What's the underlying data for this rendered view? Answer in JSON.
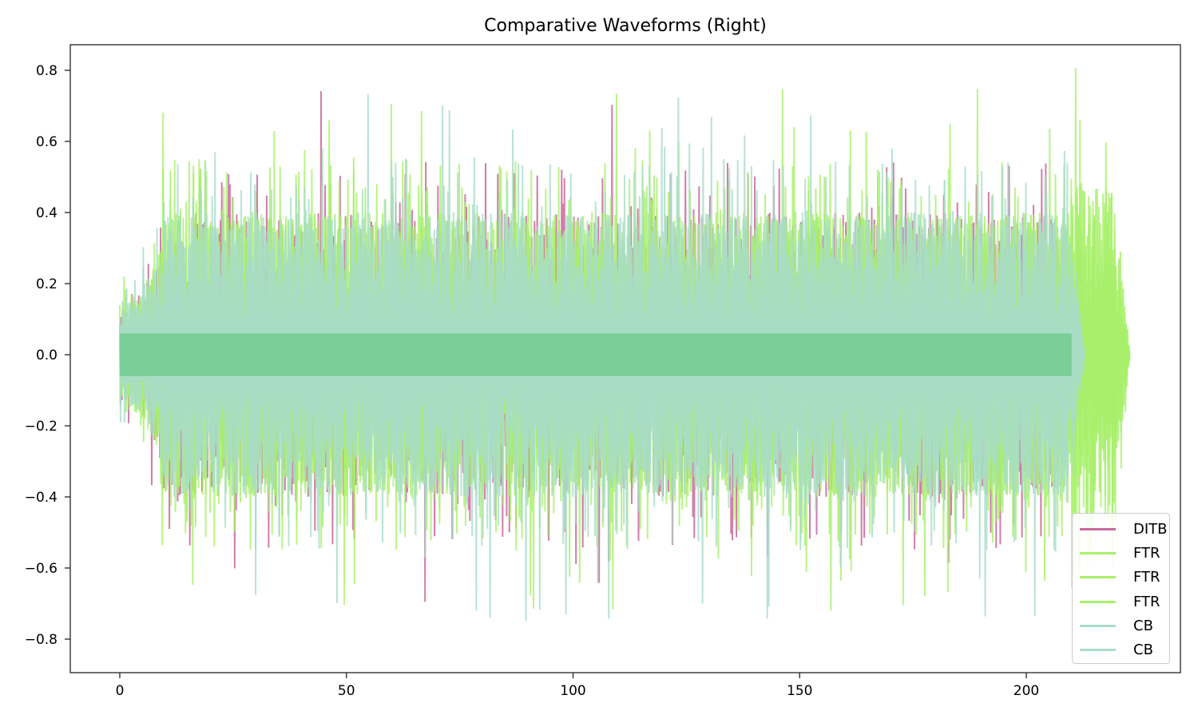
{
  "chart_data": {
    "type": "line",
    "title": "Comparative Waveforms (Right)",
    "xlabel": "",
    "ylabel": "",
    "xlim": [
      -11,
      234
    ],
    "ylim": [
      -0.9,
      0.87
    ],
    "xticks": [
      0,
      50,
      100,
      150,
      200
    ],
    "yticks": [
      0.8,
      0.6,
      0.4,
      0.2,
      0.0,
      -0.2,
      -0.4,
      -0.6,
      -0.8
    ],
    "ytick_labels": [
      "0.8",
      "0.6",
      "0.4",
      "0.2",
      "0.0",
      "−0.2",
      "−0.4",
      "−0.6",
      "−0.8"
    ],
    "grid": false,
    "legend_position": "lower right",
    "series": [
      {
        "name": "DITB",
        "color": "#c9689b",
        "duration": 210,
        "envelope_peak": 0.73,
        "envelope_trough": -0.82
      },
      {
        "name": "FTR",
        "color": "#a8f06a",
        "duration": 223,
        "envelope_peak": 0.79,
        "envelope_trough": -0.71
      },
      {
        "name": "FTR",
        "color": "#a8f06a",
        "duration": 223,
        "envelope_peak": 0.79,
        "envelope_trough": -0.71
      },
      {
        "name": "FTR",
        "color": "#a8f06a",
        "duration": 223,
        "envelope_peak": 0.79,
        "envelope_trough": -0.71
      },
      {
        "name": "CB",
        "color": "#a8dcc8",
        "duration": 213,
        "envelope_peak": 0.69,
        "envelope_trough": -0.76
      },
      {
        "name": "CB",
        "color": "#a8dcc8",
        "duration": 213,
        "envelope_peak": 0.69,
        "envelope_trough": -0.76
      }
    ]
  },
  "legend": {
    "items": [
      {
        "label": "DITB",
        "color": "#c9689b"
      },
      {
        "label": "FTR",
        "color": "#a8f06a"
      },
      {
        "label": "FTR",
        "color": "#a8f06a"
      },
      {
        "label": "FTR",
        "color": "#a8f06a"
      },
      {
        "label": "CB",
        "color": "#a8dcc8"
      },
      {
        "label": "CB",
        "color": "#a8dcc8"
      }
    ]
  }
}
